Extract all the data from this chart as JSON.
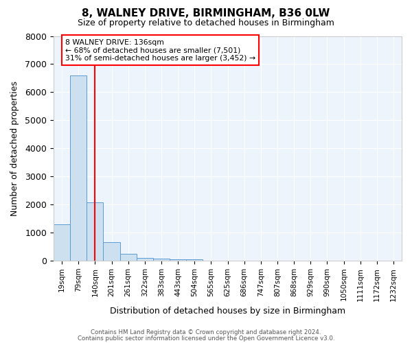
{
  "title1": "8, WALNEY DRIVE, BIRMINGHAM, B36 0LW",
  "title2": "Size of property relative to detached houses in Birmingham",
  "xlabel": "Distribution of detached houses by size in Birmingham",
  "ylabel": "Number of detached properties",
  "annotation_title": "8 WALNEY DRIVE: 136sqm",
  "annotation_line2": "← 68% of detached houses are smaller (7,501)",
  "annotation_line3": "31% of semi-detached houses are larger (3,452) →",
  "footer1": "Contains HM Land Registry data © Crown copyright and database right 2024.",
  "footer2": "Contains public sector information licensed under the Open Government Licence v3.0.",
  "bin_labels": [
    "19sqm",
    "79sqm",
    "140sqm",
    "201sqm",
    "261sqm",
    "322sqm",
    "383sqm",
    "443sqm",
    "504sqm",
    "565sqm",
    "625sqm",
    "686sqm",
    "747sqm",
    "807sqm",
    "868sqm",
    "929sqm",
    "990sqm",
    "1050sqm",
    "1111sqm",
    "1172sqm",
    "1232sqm"
  ],
  "bar_heights": [
    1300,
    6600,
    2080,
    670,
    260,
    110,
    70,
    55,
    55,
    0,
    0,
    0,
    0,
    0,
    0,
    0,
    0,
    0,
    0,
    0,
    0
  ],
  "bar_color": "#cce0f0",
  "bar_edge_color": "#5b9bd5",
  "red_line_x": 2,
  "ylim": [
    0,
    8000
  ],
  "yticks": [
    0,
    1000,
    2000,
    3000,
    4000,
    5000,
    6000,
    7000,
    8000
  ],
  "bg_color": "#eef4fb"
}
